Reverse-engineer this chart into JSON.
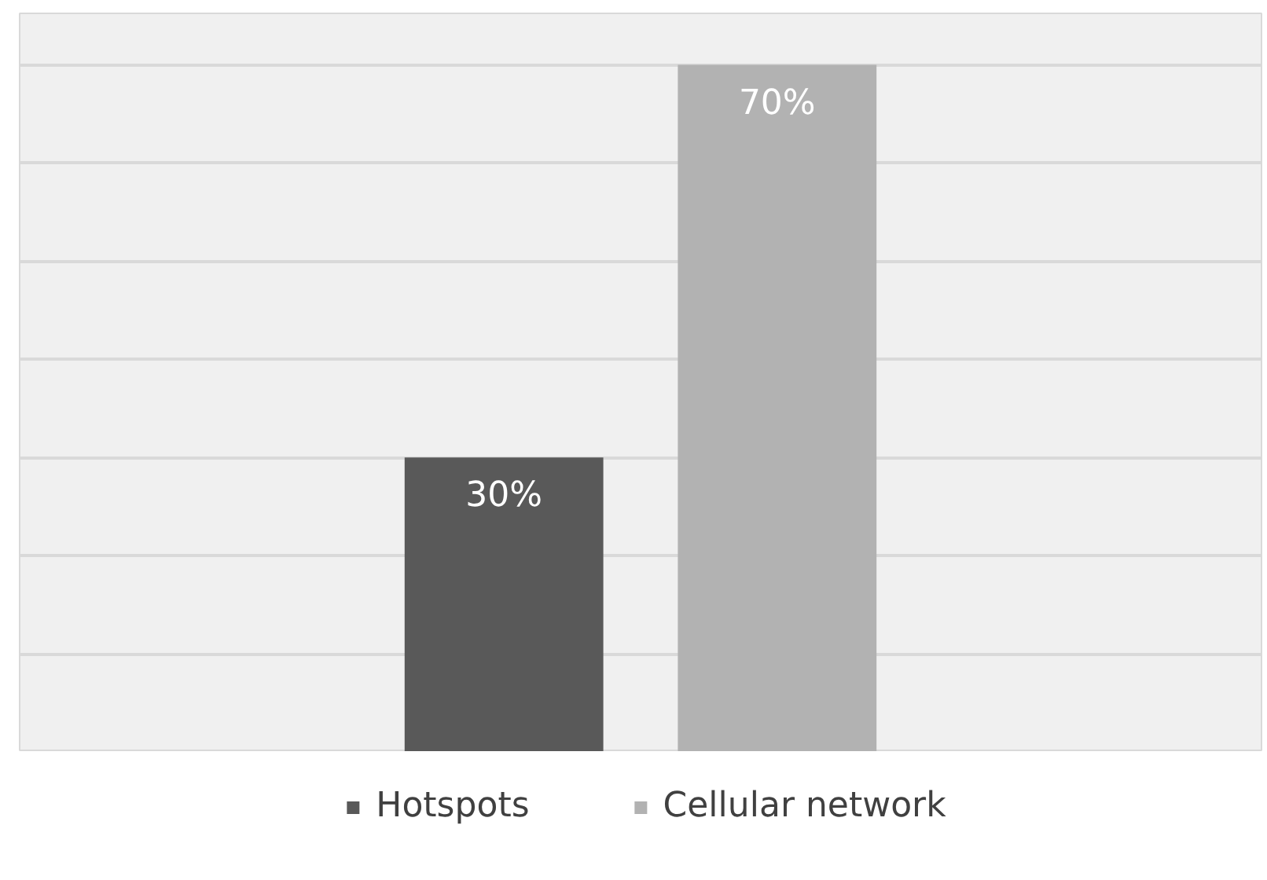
{
  "chart_data": {
    "type": "bar",
    "categories": [
      null
    ],
    "series": [
      {
        "name": "Hotspots",
        "color": "#595959",
        "values": [
          30
        ],
        "value_labels": [
          "30%"
        ]
      },
      {
        "name": "Cellular network",
        "color": "#b2b2b2",
        "values": [
          70
        ],
        "value_labels": [
          "70%"
        ]
      }
    ],
    "grid": "y",
    "legend": "bottom",
    "tick_labels": false
  }
}
